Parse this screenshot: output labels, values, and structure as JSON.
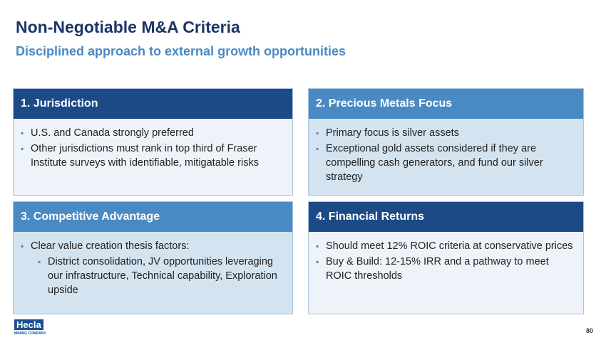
{
  "header": {
    "title": "Non-Negotiable M&A Criteria",
    "subtitle": "Disciplined approach to external growth opportunities"
  },
  "panels": [
    {
      "title": "1. Jurisdiction",
      "bullets": [
        {
          "text": "U.S. and Canada strongly preferred"
        },
        {
          "text": "Other jurisdictions must rank in top third of Fraser Institute surveys with identifiable, mitigatable risks"
        }
      ]
    },
    {
      "title": "2. Precious Metals Focus",
      "bullets": [
        {
          "text": "Primary focus is silver assets"
        },
        {
          "text": "Exceptional gold assets considered if they are compelling cash generators, and fund our silver strategy"
        }
      ]
    },
    {
      "title": "3. Competitive Advantage",
      "bullets": [
        {
          "text": "Clear value creation thesis factors:",
          "items": [
            "District consolidation, JV opportunities leveraging our infrastructure, Technical capability, Exploration upside"
          ]
        }
      ]
    },
    {
      "title": "4. Financial Returns",
      "bullets": [
        {
          "text": "Should meet 12% ROIC criteria at conservative prices"
        },
        {
          "text": "Buy & Build: 12-15% IRR and a pathway to meet ROIC thresholds"
        }
      ]
    }
  ],
  "footer": {
    "logo": "Hecla",
    "logo_sub": "MINING COMPANY",
    "page": "80"
  }
}
